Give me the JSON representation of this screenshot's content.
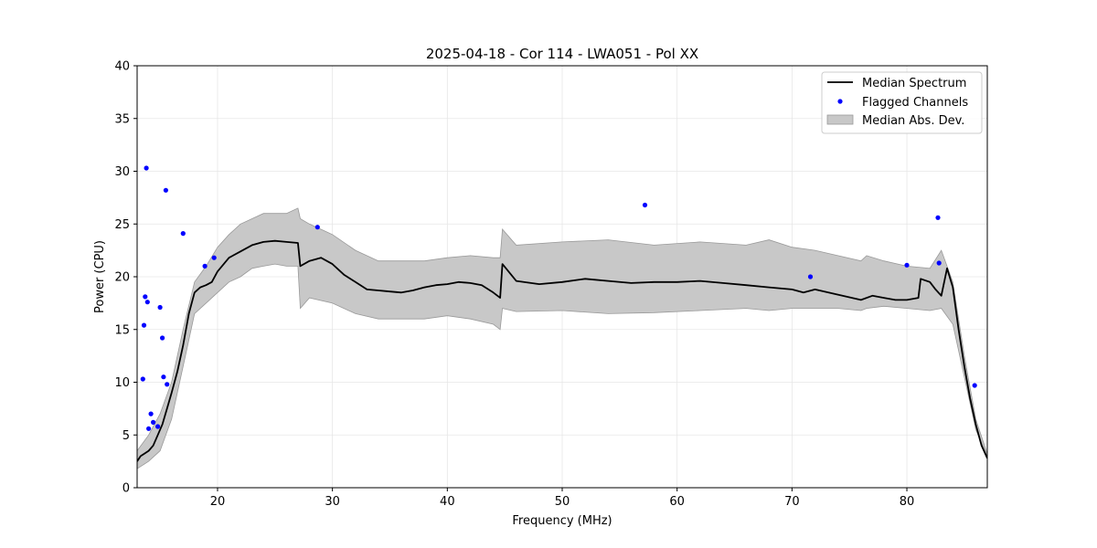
{
  "chart_data": {
    "type": "line",
    "title": "2025-04-18 - Cor 114 - LWA051 - Pol XX",
    "xlabel": "Frequency (MHz)",
    "ylabel": "Power (CPU)",
    "xlim": [
      13.0,
      87.0
    ],
    "ylim": [
      0,
      40
    ],
    "xticks": [
      20,
      30,
      40,
      50,
      60,
      70,
      80
    ],
    "yticks": [
      0,
      5,
      10,
      15,
      20,
      25,
      30,
      35,
      40
    ],
    "grid": true,
    "legend_position": "upper-right",
    "colors": {
      "median": "#000000",
      "flagged": "#0000ff",
      "mad_fill": "#c8c8c8",
      "mad_edge": "#999999",
      "grid": "#e6e6e6"
    },
    "series": [
      {
        "name": "Median Spectrum",
        "kind": "line",
        "x": [
          13.0,
          13.3,
          13.6,
          14.0,
          14.4,
          14.8,
          15.2,
          15.6,
          16.0,
          16.5,
          17.0,
          17.5,
          18.0,
          18.5,
          19.0,
          19.5,
          20.0,
          21.0,
          22.0,
          23.0,
          24.0,
          25.0,
          26.0,
          27.0,
          27.2,
          28.0,
          29.0,
          30.0,
          31.0,
          32.0,
          33.0,
          34.0,
          35.0,
          36.0,
          37.0,
          38.0,
          39.0,
          40.0,
          41.0,
          42.0,
          43.0,
          44.0,
          44.6,
          44.8,
          46.0,
          48.0,
          50.0,
          52.0,
          54.0,
          56.0,
          58.0,
          60.0,
          62.0,
          64.0,
          66.0,
          68.0,
          70.0,
          71.0,
          72.0,
          74.0,
          76.0,
          77.0,
          78.0,
          79.0,
          80.0,
          81.0,
          81.2,
          82.0,
          82.5,
          83.0,
          83.5,
          84.0,
          84.5,
          85.0,
          85.5,
          86.0,
          86.5,
          87.0
        ],
        "y": [
          2.5,
          3.0,
          3.2,
          3.5,
          4.0,
          5.0,
          6.0,
          7.5,
          9.0,
          11.0,
          13.5,
          16.5,
          18.5,
          19.0,
          19.2,
          19.5,
          20.5,
          21.8,
          22.4,
          23.0,
          23.3,
          23.4,
          23.3,
          23.2,
          21.0,
          21.5,
          21.8,
          21.2,
          20.2,
          19.5,
          18.8,
          18.7,
          18.6,
          18.5,
          18.7,
          19.0,
          19.2,
          19.3,
          19.5,
          19.4,
          19.2,
          18.5,
          18.0,
          21.2,
          19.6,
          19.3,
          19.5,
          19.8,
          19.6,
          19.4,
          19.5,
          19.5,
          19.6,
          19.4,
          19.2,
          19.0,
          18.8,
          18.5,
          18.8,
          18.3,
          17.8,
          18.2,
          18.0,
          17.8,
          17.8,
          18.0,
          19.8,
          19.5,
          18.8,
          18.2,
          20.8,
          19.0,
          15.0,
          11.5,
          8.5,
          6.0,
          4.0,
          2.8
        ]
      },
      {
        "name": "Flagged Channels",
        "kind": "scatter",
        "x": [
          13.5,
          13.6,
          13.7,
          13.8,
          13.9,
          14.0,
          14.2,
          14.4,
          14.8,
          15.0,
          15.2,
          15.3,
          15.5,
          15.6,
          17.0,
          18.9,
          19.7,
          28.7,
          57.2,
          71.6,
          80.0,
          82.7,
          82.8,
          85.9
        ],
        "y": [
          10.3,
          15.4,
          18.1,
          30.3,
          17.6,
          5.6,
          7.0,
          6.2,
          5.8,
          17.1,
          14.2,
          10.5,
          28.2,
          9.8,
          24.1,
          21.0,
          21.8,
          24.7,
          26.8,
          20.0,
          21.1,
          25.6,
          21.3,
          9.7
        ]
      },
      {
        "name": "Median Abs. Dev.",
        "kind": "band",
        "x": [
          13.0,
          14.0,
          15.0,
          16.0,
          17.0,
          18.0,
          19.0,
          20.0,
          21.0,
          22.0,
          23.0,
          24.0,
          25.0,
          26.0,
          27.0,
          27.2,
          28.0,
          30.0,
          32.0,
          34.0,
          36.0,
          38.0,
          40.0,
          42.0,
          44.0,
          44.6,
          44.8,
          46.0,
          50.0,
          54.0,
          58.0,
          62.0,
          66.0,
          68.0,
          70.0,
          72.0,
          74.0,
          76.0,
          76.5,
          78.0,
          80.0,
          82.0,
          83.0,
          84.0,
          85.0,
          86.0,
          87.0
        ],
        "lower": [
          1.8,
          2.5,
          3.5,
          6.5,
          11.5,
          16.5,
          17.5,
          18.5,
          19.5,
          20.0,
          20.8,
          21.0,
          21.2,
          21.0,
          21.0,
          17.0,
          18.0,
          17.5,
          16.5,
          16.0,
          16.0,
          16.0,
          16.3,
          16.0,
          15.5,
          15.0,
          17.0,
          16.7,
          16.8,
          16.5,
          16.6,
          16.8,
          17.0,
          16.8,
          17.0,
          17.0,
          17.0,
          16.8,
          17.0,
          17.2,
          17.0,
          16.8,
          17.0,
          15.5,
          10.5,
          5.5,
          3.0
        ],
        "upper": [
          3.5,
          5.0,
          7.0,
          10.0,
          15.0,
          19.5,
          21.0,
          22.8,
          24.0,
          25.0,
          25.5,
          26.0,
          26.0,
          26.0,
          26.5,
          25.5,
          25.0,
          24.0,
          22.5,
          21.5,
          21.5,
          21.5,
          21.8,
          22.0,
          21.8,
          21.8,
          24.5,
          23.0,
          23.3,
          23.5,
          23.0,
          23.3,
          23.0,
          23.5,
          22.8,
          22.5,
          22.0,
          21.5,
          22.0,
          21.5,
          21.0,
          20.8,
          22.5,
          19.5,
          12.5,
          6.5,
          3.2
        ]
      }
    ]
  }
}
